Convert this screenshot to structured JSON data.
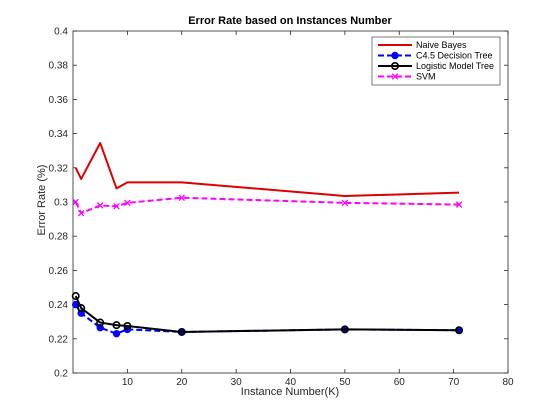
{
  "chart_data": {
    "type": "line",
    "title": "Error Rate based on Instances Number",
    "xlabel": "Instance Number(K)",
    "ylabel": "Error Rate (%)",
    "xlim": [
      0,
      80
    ],
    "ylim": [
      0.2,
      0.4
    ],
    "xticks": [
      10,
      20,
      30,
      40,
      50,
      60,
      70,
      80
    ],
    "yticks": [
      0.2,
      0.22,
      0.24,
      0.26,
      0.28,
      0.3,
      0.32,
      0.34,
      0.36,
      0.38,
      0.4
    ],
    "grid": false,
    "legend_position": "top-right",
    "series": [
      {
        "name": "Naive Bayes",
        "color": "#dd0000",
        "line_style": "solid",
        "marker": "none",
        "x": [
          0.5,
          1.5,
          5,
          8,
          10,
          20,
          50,
          71
        ],
        "y": [
          0.32,
          0.3135,
          0.3345,
          0.308,
          0.3115,
          0.3115,
          0.3035,
          0.3055
        ]
      },
      {
        "name": "C4.5 Decision Tree",
        "color": "#0000ff",
        "line_style": "dashed",
        "marker": "circle-filled",
        "x": [
          0.5,
          1.5,
          5,
          8,
          10,
          20,
          50,
          71
        ],
        "y": [
          0.24,
          0.235,
          0.2265,
          0.223,
          0.2255,
          0.224,
          0.2255,
          0.225
        ]
      },
      {
        "name": "Logistic Model Tree",
        "color": "#000000",
        "line_style": "solid",
        "marker": "circle-open",
        "x": [
          0.5,
          1.5,
          5,
          8,
          10,
          20,
          50,
          71
        ],
        "y": [
          0.245,
          0.238,
          0.2295,
          0.228,
          0.2275,
          0.224,
          0.2255,
          0.225
        ]
      },
      {
        "name": "SVM",
        "color": "#ff00ff",
        "line_style": "dashed",
        "marker": "x",
        "x": [
          0.5,
          1.5,
          5,
          8,
          10,
          20,
          50,
          71
        ],
        "y": [
          0.3,
          0.2935,
          0.298,
          0.2975,
          0.2995,
          0.3025,
          0.2995,
          0.2985
        ]
      }
    ]
  }
}
